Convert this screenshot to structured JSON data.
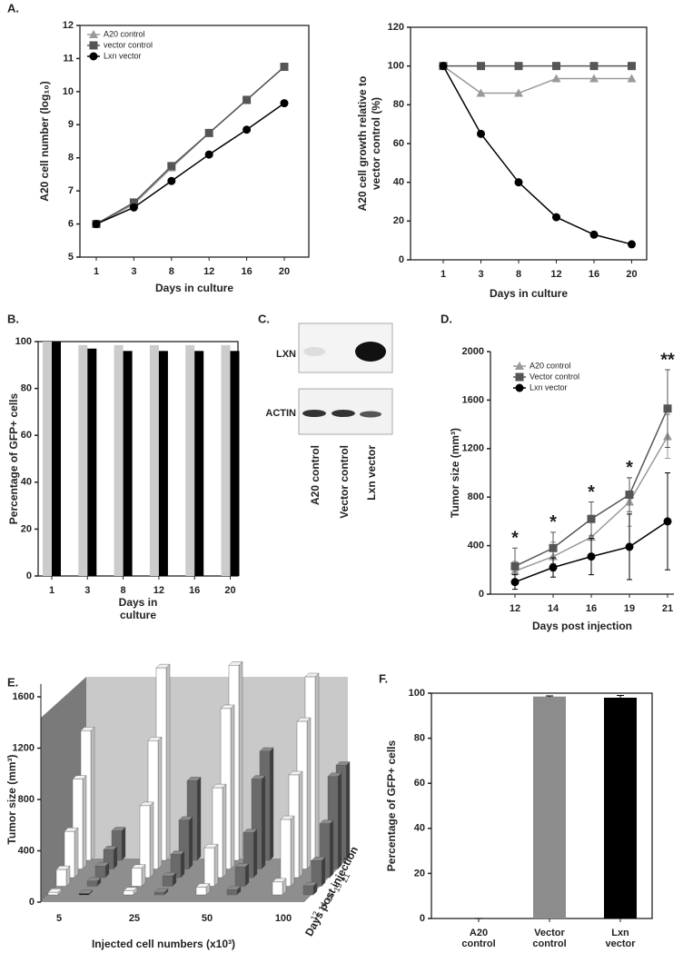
{
  "chart_data": [
    {
      "type": "line",
      "panel": "A.",
      "categories": [
        "1",
        "3",
        "8",
        "12",
        "16",
        "20"
      ],
      "series": [
        {
          "name": "A20 control",
          "color": "#9a9a9a",
          "marker": "triangle",
          "values": [
            6.0,
            6.6,
            7.7,
            8.75,
            9.75,
            10.75
          ]
        },
        {
          "name": "vector control",
          "color": "#555555",
          "marker": "square",
          "values": [
            6.0,
            6.65,
            7.75,
            8.75,
            9.75,
            10.75
          ]
        },
        {
          "name": "Lxn vector",
          "color": "#000000",
          "marker": "circle",
          "values": [
            6.0,
            6.5,
            7.3,
            8.1,
            8.85,
            9.65
          ]
        }
      ],
      "ylim": [
        5,
        12
      ],
      "yticks": [
        5,
        6,
        7,
        8,
        9,
        10,
        11,
        12
      ],
      "xlabel": "Days in culture",
      "ylabel": [
        "A20  cell number (log₁₀)"
      ],
      "legend": "upper left"
    },
    {
      "type": "line",
      "categories": [
        "1",
        "3",
        "8",
        "12",
        "16",
        "20"
      ],
      "series": [
        {
          "color": "#9a9a9a",
          "marker": "triangle",
          "values": [
            100,
            86,
            86,
            93.5,
            93.5,
            93.5
          ]
        },
        {
          "color": "#555555",
          "marker": "square",
          "values": [
            100,
            100,
            100,
            100,
            100,
            100
          ]
        },
        {
          "color": "#000000",
          "marker": "circle",
          "values": [
            100,
            65,
            40,
            22,
            13,
            8
          ]
        }
      ],
      "ylim": [
        0,
        120
      ],
      "yticks": [
        0,
        20,
        40,
        60,
        80,
        100,
        120
      ],
      "xlabel": "Days in culture",
      "ylabel": [
        "A20  cell growth relative to",
        "vector control (%)"
      ]
    },
    {
      "type": "bar",
      "panel": "B.",
      "categories": [
        "1",
        "3",
        "8",
        "12",
        "16",
        "20"
      ],
      "series": [
        {
          "color": "#cccccc",
          "values": [
            100,
            98.5,
            98.5,
            98.5,
            98.5,
            98.5
          ]
        },
        {
          "color": "#000000",
          "values": [
            100,
            97,
            96,
            96,
            96,
            96
          ]
        }
      ],
      "ylim": [
        0,
        100
      ],
      "yticks": [
        0,
        20,
        40,
        60,
        80,
        100
      ],
      "xlabel": [
        "Days in",
        "culture"
      ],
      "ylabel": [
        "Percentage of GFP+ cells"
      ]
    },
    {
      "type": "blot",
      "panel": "C.",
      "rows": [
        "LXN",
        "ACTIN"
      ],
      "lanes": [
        "A20 control",
        "Vector control",
        "Lxn vector"
      ]
    },
    {
      "type": "errorline",
      "panel": "D.",
      "categories": [
        "12",
        "14",
        "16",
        "19",
        "21"
      ],
      "series": [
        {
          "name": "A20 control",
          "color": "#9a9a9a",
          "marker": "triangle",
          "values": [
            190,
            310,
            470,
            760,
            1300
          ],
          "errors": [
            80,
            120,
            180,
            200,
            180
          ]
        },
        {
          "name": "Vector control",
          "color": "#555555",
          "marker": "square",
          "values": [
            230,
            380,
            620,
            820,
            1530
          ],
          "errors": [
            150,
            130,
            140,
            140,
            320
          ]
        },
        {
          "name": "Lxn vector",
          "color": "#000000",
          "marker": "circle",
          "values": [
            100,
            220,
            310,
            390,
            600
          ],
          "errors": [
            60,
            80,
            150,
            270,
            400
          ]
        }
      ],
      "annotations": [
        "*",
        "*",
        "*",
        "*",
        "**"
      ],
      "ylim": [
        0,
        2000
      ],
      "yticks": [
        0,
        400,
        800,
        1200,
        1600,
        2000
      ],
      "xlabel": "Days post injection",
      "ylabel": [
        "Tumor size (mm³)"
      ],
      "legend": "upper left"
    },
    {
      "type": "bar3d",
      "panel": "E.",
      "categories": [
        "5",
        "25",
        "50",
        "100"
      ],
      "depth_categories": [
        "12",
        "14",
        "16",
        "19",
        "21"
      ],
      "series": [
        {
          "color": "#ffffff",
          "values": [
            [
              20,
              130,
              360,
              700,
              1010
            ],
            [
              30,
              140,
              560,
              1000,
              1500
            ],
            [
              60,
              300,
              700,
              1250,
              1520
            ],
            [
              100,
              520,
              800,
              1150,
              1430
            ]
          ]
        },
        {
          "color": "#6a6a6a",
          "values": [
            [
              10,
              40,
              90,
              150,
              230
            ],
            [
              20,
              80,
              180,
              380,
              620
            ],
            [
              40,
              150,
              350,
              700,
              850
            ],
            [
              70,
              200,
              420,
              720,
              740
            ]
          ]
        }
      ],
      "zlim": [
        0,
        1700
      ],
      "zticks": [
        0,
        400,
        800,
        1200,
        1600
      ],
      "xlabel": "Injected cell numbers (x10³)",
      "zlabel": "Tumor size (mm³)",
      "depth_label": "Days post injection"
    },
    {
      "type": "errorbar",
      "panel": "F.",
      "categories": [
        "A20 control",
        "Vector control",
        "Lxn vector"
      ],
      "values": [
        0,
        98.5,
        98
      ],
      "errors": [
        0,
        0.3,
        1
      ],
      "colors": [
        "#8c8c8c",
        "#8c8c8c",
        "#000000"
      ],
      "ylim": [
        0,
        100
      ],
      "yticks": [
        0,
        20,
        40,
        60,
        80,
        100
      ],
      "ylabel": [
        "Percentage of GFP+ cells"
      ]
    }
  ]
}
